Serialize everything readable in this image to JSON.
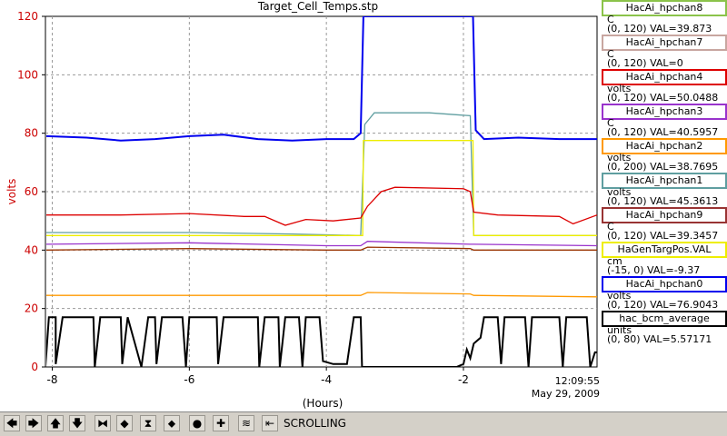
{
  "chart_data": {
    "type": "line",
    "title": "Target_Cell_Temps.stp",
    "xlabel": "(Hours)",
    "ylabel": "volts",
    "xlim": [
      -8.1,
      -0.05
    ],
    "ylim": [
      0,
      120
    ],
    "x_ticks": [
      -8,
      -6,
      -4,
      -2
    ],
    "y_ticks": [
      0,
      20,
      40,
      60,
      80,
      100,
      120
    ],
    "grid": true,
    "timestamp_time": "12:09:55",
    "timestamp_date": "May 29, 2009",
    "series": [
      {
        "color": "#0000ee",
        "points": [
          [
            -8.1,
            79
          ],
          [
            -7.5,
            78.5
          ],
          [
            -7,
            77.5
          ],
          [
            -6.5,
            78
          ],
          [
            -6,
            79
          ],
          [
            -5.5,
            79.5
          ],
          [
            -5,
            78
          ],
          [
            -4.5,
            77.5
          ],
          [
            -4,
            78
          ],
          [
            -3.6,
            78
          ],
          [
            -3.5,
            80
          ],
          [
            -3.46,
            120
          ],
          [
            -1.86,
            120
          ],
          [
            -1.82,
            81
          ],
          [
            -1.7,
            78
          ],
          [
            -1.2,
            78.5
          ],
          [
            -0.6,
            78
          ],
          [
            -0.05,
            78
          ]
        ]
      },
      {
        "color": "#5f9ea0",
        "points": [
          [
            -8.1,
            46
          ],
          [
            -6,
            46
          ],
          [
            -4.5,
            45.5
          ],
          [
            -3.5,
            45
          ],
          [
            -3.44,
            83
          ],
          [
            -3.3,
            87
          ],
          [
            -2.5,
            87
          ],
          [
            -1.9,
            86
          ],
          [
            -1.85,
            45
          ],
          [
            -1,
            45
          ],
          [
            -0.05,
            45
          ]
        ]
      },
      {
        "color": "#eeee00",
        "points": [
          [
            -8.1,
            45
          ],
          [
            -6,
            45
          ],
          [
            -4,
            45
          ],
          [
            -3.47,
            45
          ],
          [
            -3.46,
            77.5
          ],
          [
            -1.86,
            77.5
          ],
          [
            -1.85,
            45
          ],
          [
            -0.05,
            45
          ]
        ]
      },
      {
        "color": "#dd0000",
        "points": [
          [
            -8.1,
            52
          ],
          [
            -7,
            52
          ],
          [
            -6,
            52.5
          ],
          [
            -5.2,
            51.5
          ],
          [
            -4.9,
            51.5
          ],
          [
            -4.6,
            48.5
          ],
          [
            -4.3,
            50.5
          ],
          [
            -3.9,
            50
          ],
          [
            -3.5,
            51
          ],
          [
            -3.4,
            55
          ],
          [
            -3.2,
            60
          ],
          [
            -3.0,
            61.5
          ],
          [
            -2,
            61
          ],
          [
            -1.9,
            60
          ],
          [
            -1.85,
            53
          ],
          [
            -1.5,
            52
          ],
          [
            -0.6,
            51.5
          ],
          [
            -0.4,
            49
          ],
          [
            -0.05,
            52
          ]
        ]
      },
      {
        "color": "#9933cc",
        "points": [
          [
            -8.1,
            42
          ],
          [
            -6,
            42.5
          ],
          [
            -4,
            41.5
          ],
          [
            -3.5,
            41.5
          ],
          [
            -3.4,
            43
          ],
          [
            -1.9,
            42
          ],
          [
            -1.85,
            42
          ],
          [
            -0.05,
            41.5
          ]
        ]
      },
      {
        "color": "#993300",
        "points": [
          [
            -8.1,
            40
          ],
          [
            -6,
            40.5
          ],
          [
            -4,
            40
          ],
          [
            -3.5,
            40
          ],
          [
            -3.4,
            41
          ],
          [
            -1.9,
            40.5
          ],
          [
            -1.85,
            40
          ],
          [
            -0.05,
            40
          ]
        ]
      },
      {
        "color": "#ff9900",
        "points": [
          [
            -8.1,
            24.5
          ],
          [
            -6,
            24.5
          ],
          [
            -4,
            24.5
          ],
          [
            -3.5,
            24.5
          ],
          [
            -3.4,
            25.5
          ],
          [
            -1.9,
            25
          ],
          [
            -1.85,
            24.5
          ],
          [
            -0.05,
            24
          ]
        ]
      },
      {
        "color": "#000000",
        "points": [
          [
            -8.1,
            0
          ],
          [
            -8.05,
            17
          ],
          [
            -7.95,
            17
          ],
          [
            -7.95,
            1
          ],
          [
            -7.85,
            17
          ],
          [
            -7.4,
            17
          ],
          [
            -7.38,
            0
          ],
          [
            -7.3,
            17
          ],
          [
            -7.0,
            17
          ],
          [
            -6.98,
            1
          ],
          [
            -6.9,
            17
          ],
          [
            -6.7,
            0
          ],
          [
            -6.6,
            17
          ],
          [
            -6.5,
            17
          ],
          [
            -6.48,
            1
          ],
          [
            -6.4,
            17
          ],
          [
            -6.1,
            17
          ],
          [
            -6.05,
            0
          ],
          [
            -6.0,
            17
          ],
          [
            -5.6,
            17
          ],
          [
            -5.58,
            1
          ],
          [
            -5.5,
            17
          ],
          [
            -5.0,
            17
          ],
          [
            -4.98,
            0
          ],
          [
            -4.9,
            17
          ],
          [
            -4.7,
            17
          ],
          [
            -4.68,
            0
          ],
          [
            -4.6,
            17
          ],
          [
            -4.4,
            17
          ],
          [
            -4.35,
            0
          ],
          [
            -4.3,
            17
          ],
          [
            -4.1,
            17
          ],
          [
            -4.05,
            2
          ],
          [
            -3.9,
            1
          ],
          [
            -3.7,
            1
          ],
          [
            -3.6,
            17
          ],
          [
            -3.5,
            17
          ],
          [
            -3.48,
            0
          ],
          [
            -2.1,
            0
          ],
          [
            -2.0,
            1
          ],
          [
            -1.95,
            6
          ],
          [
            -1.9,
            3
          ],
          [
            -1.85,
            8
          ],
          [
            -1.75,
            10
          ],
          [
            -1.7,
            17
          ],
          [
            -1.5,
            17
          ],
          [
            -1.45,
            1
          ],
          [
            -1.4,
            17
          ],
          [
            -1.1,
            17
          ],
          [
            -1.05,
            0
          ],
          [
            -1.0,
            17
          ],
          [
            -0.6,
            17
          ],
          [
            -0.55,
            0
          ],
          [
            -0.5,
            17
          ],
          [
            -0.2,
            17
          ],
          [
            -0.15,
            0
          ],
          [
            -0.08,
            5
          ],
          [
            -0.05,
            5
          ]
        ]
      }
    ]
  },
  "legend": [
    {
      "name": "HacAi_hpchan8",
      "unit": "C",
      "range": "(0, 120) VAL=39.873",
      "color": "#8bc34a"
    },
    {
      "name": "HacAi_hpchan7",
      "unit": "C",
      "range": "(0, 120) VAL=0",
      "color": "#c8a6a0"
    },
    {
      "name": "HacAi_hpchan4",
      "unit": "volts",
      "range": "(0, 120) VAL=50.0488",
      "color": "#dd0000"
    },
    {
      "name": "HacAi_hpchan3",
      "unit": "C",
      "range": "(0, 120) VAL=40.5957",
      "color": "#9933cc"
    },
    {
      "name": "HacAi_hpchan2",
      "unit": "volts",
      "range": "(0, 200) VAL=38.7695",
      "color": "#ff9900"
    },
    {
      "name": "HacAi_hpchan1",
      "unit": "volts",
      "range": "(0, 120) VAL=45.3613",
      "color": "#5f9ea0"
    },
    {
      "name": "HacAi_hpchan9",
      "unit": "C",
      "range": "(0, 120) VAL=39.3457",
      "color": "#993333"
    },
    {
      "name": "HaGenTargPos.VAL",
      "unit": "cm",
      "range": "(-15, 0) VAL=-9.37",
      "color": "#eeee00"
    },
    {
      "name": "HacAi_hpchan0",
      "unit": "volts",
      "range": "(0, 120) VAL=76.9043",
      "color": "#0000ee"
    },
    {
      "name": "hac_bcm_average",
      "unit": "units",
      "range": "(0, 80) VAL=5.57171",
      "color": "#000000"
    }
  ],
  "toolbar": {
    "buttons": [
      {
        "icon": "arrow-left-icon",
        "glyph": "🡄"
      },
      {
        "icon": "arrow-right-icon",
        "glyph": "🡆"
      },
      {
        "icon": "arrow-up-icon",
        "glyph": "🡅"
      },
      {
        "icon": "arrow-down-icon",
        "glyph": "🡇"
      },
      {
        "icon": "compress-horizontal-icon",
        "glyph": "⧓"
      },
      {
        "icon": "expand-horizontal-icon",
        "glyph": "◆"
      },
      {
        "icon": "compress-vertical-icon",
        "glyph": "⧗"
      },
      {
        "icon": "expand-vertical-icon",
        "glyph": "⬥"
      },
      {
        "icon": "record-icon",
        "glyph": "●"
      },
      {
        "icon": "plus-icon",
        "glyph": "✚"
      },
      {
        "icon": "autoscale-icon",
        "glyph": "≋"
      },
      {
        "icon": "scroll-back-icon",
        "glyph": "⇤"
      }
    ],
    "status": "SCROLLING"
  }
}
